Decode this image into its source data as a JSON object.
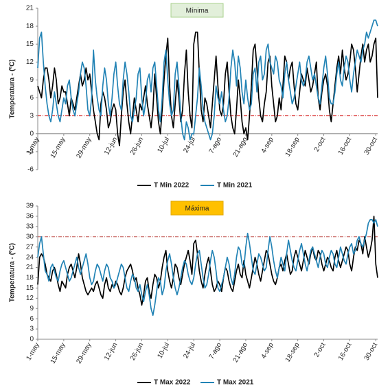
{
  "chart_data": [
    {
      "type": "line",
      "title": "Mínima",
      "title_color": "#e2efda",
      "title_border": "#a9d08e",
      "y_label": "Temperatura - (ºC)",
      "categories": [
        "1-may",
        null,
        null,
        null,
        null,
        null,
        null,
        null,
        null,
        null,
        null,
        null,
        null,
        null,
        "15-may",
        null,
        null,
        null,
        null,
        null,
        null,
        null,
        null,
        null,
        null,
        null,
        null,
        null,
        "29-may",
        null,
        null,
        null,
        null,
        null,
        null,
        null,
        null,
        null,
        null,
        null,
        null,
        null,
        "12-jun",
        null,
        null,
        null,
        null,
        null,
        null,
        null,
        null,
        null,
        null,
        null,
        null,
        null,
        "26-jun",
        null,
        null,
        null,
        null,
        null,
        null,
        null,
        null,
        null,
        null,
        null,
        null,
        null,
        "10-jul",
        null,
        null,
        null,
        null,
        null,
        null,
        null,
        null,
        null,
        null,
        null,
        null,
        null,
        "24-jul",
        null,
        null,
        null,
        null,
        null,
        null,
        null,
        null,
        null,
        null,
        null,
        null,
        null,
        "7-ago",
        null,
        null,
        null,
        null,
        null,
        null,
        null,
        null,
        null,
        null,
        null,
        null,
        null,
        "21-ago",
        null,
        null,
        null,
        null,
        null,
        null,
        null,
        null,
        null,
        null,
        null,
        null,
        null,
        "4-sep",
        null,
        null,
        null,
        null,
        null,
        null,
        null,
        null,
        null,
        null,
        null,
        null,
        null,
        "18-sep",
        null,
        null,
        null,
        null,
        null,
        null,
        null,
        null,
        null,
        null,
        null,
        null,
        null,
        "2-oct",
        null,
        null,
        null,
        null,
        null,
        null,
        null,
        null,
        null,
        null,
        null,
        null,
        null,
        "16-oct",
        null,
        null,
        null,
        null,
        null,
        null,
        null,
        null,
        null,
        null,
        null,
        null,
        null,
        "30-oct",
        null
      ],
      "series": [
        {
          "name": "T Min 2022",
          "color": "#000000",
          "values": [
            8,
            7,
            6,
            9,
            11,
            11,
            9,
            6,
            8,
            11,
            9,
            5,
            6,
            8,
            7,
            7,
            5,
            3,
            6,
            5,
            4,
            6,
            8,
            10,
            8,
            9,
            11,
            9,
            10,
            7,
            4,
            2,
            0,
            -1,
            5,
            7,
            6,
            4,
            1,
            2,
            4,
            5,
            4,
            0,
            -2,
            3,
            7,
            9,
            5,
            2,
            0,
            3,
            6,
            4,
            2,
            5,
            4,
            6,
            8,
            5,
            3,
            1,
            4,
            10,
            6,
            2,
            0,
            4,
            9,
            13,
            16,
            8,
            3,
            1,
            5,
            9,
            6,
            2,
            4,
            10,
            14,
            7,
            3,
            1,
            15,
            17,
            17,
            10,
            4,
            2,
            6,
            5,
            3,
            1,
            5,
            9,
            13,
            8,
            4,
            3,
            5,
            10,
            12,
            7,
            3,
            1,
            0,
            4,
            9,
            6,
            2,
            0,
            1,
            -1,
            3,
            8,
            14,
            15,
            11,
            6,
            3,
            2,
            5,
            7,
            12,
            13,
            8,
            5,
            2,
            3,
            6,
            4,
            8,
            13,
            12,
            9,
            11,
            12,
            8,
            5,
            4,
            7,
            10,
            9,
            8,
            11,
            9,
            7,
            8,
            10,
            12,
            6,
            4,
            7,
            9,
            10,
            8,
            4,
            2,
            5,
            8,
            11,
            13,
            10,
            14,
            11,
            9,
            10,
            12,
            15,
            14,
            11,
            7,
            10,
            13,
            15,
            12,
            14,
            15,
            12,
            13,
            15,
            16,
            6
          ]
        },
        {
          "name": "T Min 2021",
          "color": "#2283b5",
          "values": [
            11,
            16,
            17,
            12,
            8,
            5,
            3,
            2,
            4,
            7,
            5,
            3,
            2,
            4,
            6,
            5,
            8,
            9,
            6,
            4,
            3,
            5,
            7,
            10,
            12,
            11,
            8,
            4,
            3,
            6,
            14,
            9,
            6,
            4,
            3,
            8,
            11,
            9,
            5,
            3,
            6,
            10,
            12,
            8,
            5,
            4,
            9,
            12,
            10,
            7,
            3,
            2,
            4,
            6,
            10,
            11,
            6,
            3,
            5,
            9,
            10,
            7,
            11,
            12,
            8,
            4,
            2,
            6,
            12,
            14,
            9,
            5,
            3,
            4,
            10,
            12,
            8,
            3,
            0,
            -1,
            2,
            1,
            -1,
            0,
            0,
            3,
            6,
            11,
            8,
            4,
            2,
            1,
            0,
            -1,
            0,
            3,
            8,
            6,
            5,
            7,
            4,
            2,
            3,
            6,
            11,
            14,
            12,
            8,
            13,
            11,
            7,
            5,
            9,
            6,
            4,
            5,
            10,
            11,
            7,
            12,
            13,
            9,
            10,
            14,
            15,
            12,
            11,
            10,
            13,
            12,
            9,
            8,
            6,
            10,
            12,
            9,
            7,
            5,
            6,
            8,
            10,
            12,
            9,
            8,
            9,
            12,
            13,
            11,
            9,
            10,
            8,
            6,
            5,
            8,
            11,
            13,
            10,
            6,
            5,
            5,
            7,
            10,
            12,
            9,
            8,
            11,
            13,
            12,
            9,
            7,
            10,
            12,
            14,
            13,
            12,
            14,
            15,
            17,
            16,
            17,
            18,
            19,
            19,
            18
          ]
        }
      ],
      "ylim": [
        -6,
        21
      ],
      "yticks": [
        -6,
        -3,
        0,
        3,
        6,
        9,
        12,
        15,
        18,
        21
      ],
      "threshold": 3,
      "threshold_color": "#d62020"
    },
    {
      "type": "line",
      "title": "Máxima",
      "title_color": "#ffc000",
      "title_border": "#e0a800",
      "y_label": "Temperatura - (ºC)",
      "categories": [
        "1-may",
        null,
        null,
        null,
        null,
        null,
        null,
        null,
        null,
        null,
        null,
        null,
        null,
        null,
        "15-may",
        null,
        null,
        null,
        null,
        null,
        null,
        null,
        null,
        null,
        null,
        null,
        null,
        null,
        "29-may",
        null,
        null,
        null,
        null,
        null,
        null,
        null,
        null,
        null,
        null,
        null,
        null,
        null,
        "12-jun",
        null,
        null,
        null,
        null,
        null,
        null,
        null,
        null,
        null,
        null,
        null,
        null,
        null,
        "26-jun",
        null,
        null,
        null,
        null,
        null,
        null,
        null,
        null,
        null,
        null,
        null,
        null,
        null,
        "10-jul",
        null,
        null,
        null,
        null,
        null,
        null,
        null,
        null,
        null,
        null,
        null,
        null,
        null,
        "24-jul",
        null,
        null,
        null,
        null,
        null,
        null,
        null,
        null,
        null,
        null,
        null,
        null,
        null,
        "7-ago",
        null,
        null,
        null,
        null,
        null,
        null,
        null,
        null,
        null,
        null,
        null,
        null,
        null,
        "21-ago",
        null,
        null,
        null,
        null,
        null,
        null,
        null,
        null,
        null,
        null,
        null,
        null,
        null,
        "4-sep",
        null,
        null,
        null,
        null,
        null,
        null,
        null,
        null,
        null,
        null,
        null,
        null,
        null,
        "18-sep",
        null,
        null,
        null,
        null,
        null,
        null,
        null,
        null,
        null,
        null,
        null,
        null,
        null,
        "2-oct",
        null,
        null,
        null,
        null,
        null,
        null,
        null,
        null,
        null,
        null,
        null,
        null,
        null,
        "16-oct",
        null,
        null,
        null,
        null,
        null,
        null,
        null,
        null,
        null,
        null,
        null,
        null,
        null,
        "30-oct",
        null
      ],
      "series": [
        {
          "name": "T Max 2022",
          "color": "#000000",
          "values": [
            16,
            24,
            25,
            24,
            22,
            19,
            18,
            17,
            20,
            21,
            19,
            16,
            14,
            17,
            16,
            15,
            19,
            21,
            22,
            20,
            18,
            21,
            25,
            22,
            18,
            16,
            14,
            13,
            14,
            15,
            14,
            16,
            17,
            15,
            13,
            12,
            16,
            18,
            15,
            14,
            16,
            15,
            17,
            16,
            14,
            13,
            15,
            18,
            20,
            21,
            22,
            20,
            17,
            18,
            15,
            13,
            10,
            13,
            17,
            18,
            14,
            12,
            16,
            19,
            18,
            15,
            17,
            21,
            24,
            26,
            20,
            17,
            15,
            18,
            22,
            21,
            18,
            16,
            19,
            22,
            24,
            26,
            23,
            19,
            28,
            29,
            25,
            20,
            17,
            15,
            19,
            22,
            24,
            20,
            16,
            14,
            15,
            17,
            16,
            14,
            18,
            21,
            20,
            17,
            15,
            14,
            17,
            20,
            22,
            19,
            18,
            23,
            19,
            17,
            15,
            18,
            21,
            24,
            22,
            19,
            17,
            20,
            23,
            26,
            25,
            22,
            19,
            17,
            16,
            18,
            21,
            22,
            20,
            23,
            25,
            22,
            19,
            20,
            24,
            26,
            24,
            22,
            20,
            23,
            26,
            24,
            22,
            25,
            27,
            24,
            23,
            26,
            25,
            22,
            20,
            22,
            24,
            23,
            21,
            20,
            24,
            26,
            23,
            21,
            23,
            25,
            27,
            26,
            22,
            20,
            24,
            27,
            26,
            29,
            28,
            25,
            30,
            27,
            24,
            26,
            29,
            36,
            22,
            18
          ]
        },
        {
          "name": "T Max 2021",
          "color": "#2283b5",
          "values": [
            24,
            28,
            30,
            25,
            20,
            19,
            17,
            21,
            22,
            20,
            18,
            17,
            20,
            22,
            23,
            21,
            19,
            17,
            18,
            20,
            22,
            24,
            21,
            19,
            21,
            23,
            25,
            22,
            18,
            16,
            17,
            20,
            22,
            21,
            19,
            17,
            20,
            22,
            21,
            18,
            17,
            15,
            16,
            18,
            20,
            22,
            21,
            18,
            15,
            14,
            17,
            19,
            18,
            15,
            14,
            16,
            13,
            11,
            14,
            16,
            13,
            9,
            7,
            10,
            14,
            18,
            17,
            13,
            15,
            20,
            23,
            25,
            22,
            18,
            15,
            13,
            15,
            18,
            21,
            23,
            22,
            19,
            17,
            16,
            18,
            22,
            25,
            26,
            22,
            18,
            15,
            16,
            19,
            23,
            26,
            24,
            20,
            15,
            14,
            16,
            18,
            21,
            24,
            22,
            18,
            16,
            19,
            24,
            27,
            26,
            22,
            21,
            27,
            31,
            28,
            24,
            20,
            19,
            22,
            25,
            24,
            22,
            20,
            21,
            26,
            30,
            27,
            23,
            20,
            18,
            21,
            24,
            22,
            20,
            25,
            29,
            26,
            23,
            21,
            20,
            23,
            26,
            28,
            25,
            22,
            20,
            23,
            26,
            27,
            25,
            23,
            21,
            24,
            26,
            25,
            22,
            21,
            24,
            26,
            25,
            22,
            21,
            24,
            27,
            25,
            23,
            22,
            25,
            27,
            28,
            25,
            26,
            29,
            30,
            28,
            27,
            29,
            31,
            34,
            35,
            35,
            34,
            35,
            33
          ]
        }
      ],
      "ylim": [
        0,
        39
      ],
      "yticks": [
        0,
        3,
        6,
        9,
        12,
        15,
        18,
        21,
        24,
        27,
        30,
        33,
        36,
        39
      ],
      "threshold": 30,
      "threshold_color": "#c0504d"
    }
  ]
}
